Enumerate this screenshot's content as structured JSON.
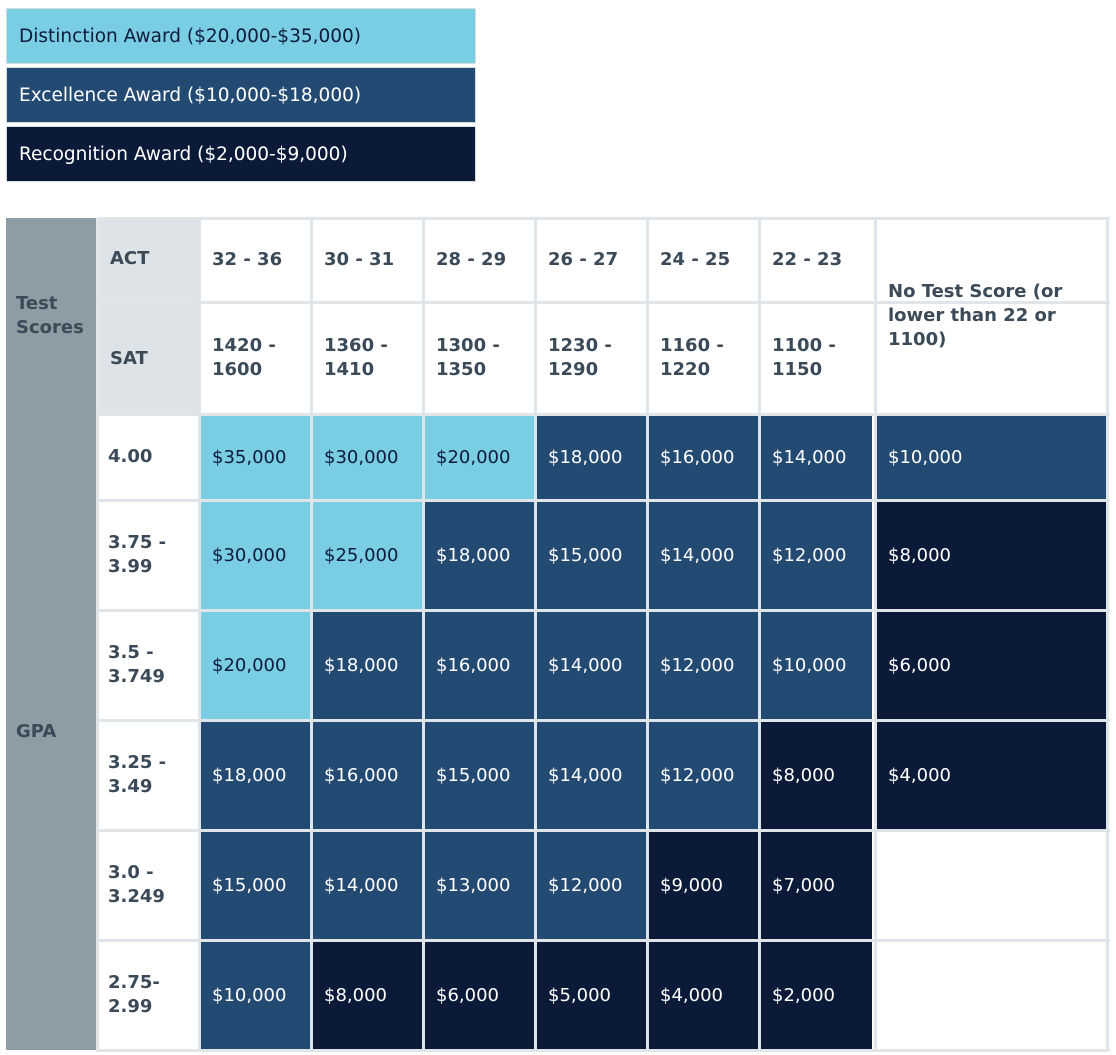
{
  "legend": [
    {
      "label": "Distinction Award ($20,000-$35,000)",
      "tier": "distinction"
    },
    {
      "label": "Excellence Award ($10,000-$18,000)",
      "tier": "excellence"
    },
    {
      "label": "Recognition Award ($2,000-$9,000)",
      "tier": "recognition"
    }
  ],
  "colors": {
    "distinction": "#79cee3",
    "excellence": "#234a73",
    "recognition": "#0b1a38",
    "side_header": "#8c9ea3",
    "sub_header": "#dde3e6"
  },
  "table": {
    "test_scores_label": "Test Scores",
    "act_label": "ACT",
    "sat_label": "SAT",
    "gpa_label": "GPA",
    "act": [
      "32 - 36",
      "30 - 31",
      "28 - 29",
      "26 - 27",
      "24 - 25",
      "22 - 23"
    ],
    "sat": [
      "1420 - 1600",
      "1360 - 1410",
      "1300 - 1350",
      "1230 - 1290",
      "1160 - 1220",
      "1100 - 1150"
    ],
    "no_test_label": "No Test Score (or lower than 22 or 1100)",
    "rows": [
      {
        "gpa": "4.00",
        "values": [
          "$35,000",
          "$30,000",
          "$20,000",
          "$18,000",
          "$16,000",
          "$14,000",
          "$10,000"
        ],
        "tiers": [
          "distinction",
          "distinction",
          "distinction",
          "excellence",
          "excellence",
          "excellence",
          "excellence"
        ]
      },
      {
        "gpa": "3.75 - 3.99",
        "values": [
          "$30,000",
          "$25,000",
          "$18,000",
          "$15,000",
          "$14,000",
          "$12,000",
          "$8,000"
        ],
        "tiers": [
          "distinction",
          "distinction",
          "excellence",
          "excellence",
          "excellence",
          "excellence",
          "recognition"
        ]
      },
      {
        "gpa": "3.5 - 3.749",
        "values": [
          "$20,000",
          "$18,000",
          "$16,000",
          "$14,000",
          "$12,000",
          "$10,000",
          "$6,000"
        ],
        "tiers": [
          "distinction",
          "excellence",
          "excellence",
          "excellence",
          "excellence",
          "excellence",
          "recognition"
        ]
      },
      {
        "gpa": "3.25 - 3.49",
        "values": [
          "$18,000",
          "$16,000",
          "$15,000",
          "$14,000",
          "$12,000",
          "$8,000",
          "$4,000"
        ],
        "tiers": [
          "excellence",
          "excellence",
          "excellence",
          "excellence",
          "excellence",
          "recognition",
          "recognition"
        ]
      },
      {
        "gpa": "3.0 - 3.249",
        "values": [
          "$15,000",
          "$14,000",
          "$13,000",
          "$12,000",
          "$9,000",
          "$7,000",
          ""
        ],
        "tiers": [
          "excellence",
          "excellence",
          "excellence",
          "excellence",
          "recognition",
          "recognition",
          "empty"
        ]
      },
      {
        "gpa": "2.75- 2.99",
        "values": [
          "$10,000",
          "$8,000",
          "$6,000",
          "$5,000",
          "$4,000",
          "$2,000",
          ""
        ],
        "tiers": [
          "excellence",
          "recognition",
          "recognition",
          "recognition",
          "recognition",
          "recognition",
          "empty"
        ]
      }
    ]
  }
}
